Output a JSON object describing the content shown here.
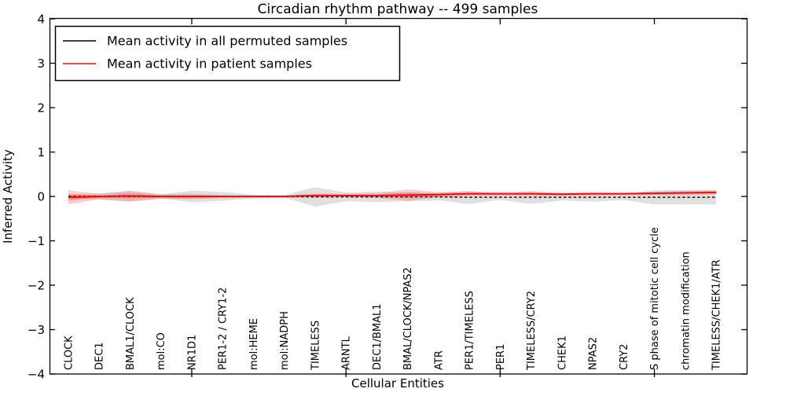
{
  "chart_data": {
    "type": "line",
    "title": "Circadian rhythm pathway -- 499 samples",
    "xlabel": "Cellular Entities",
    "ylabel": "Inferred Activity",
    "ylim": [
      -4,
      4
    ],
    "ytick_values": [
      4,
      3,
      2,
      1,
      0,
      -1,
      -2,
      -3,
      -4
    ],
    "ytick_labels": [
      "4",
      "3",
      "2",
      "1",
      "0",
      "−1",
      "−2",
      "−3",
      "−4"
    ],
    "xtick_values": [
      5,
      10,
      15,
      20
    ],
    "grid": false,
    "legend_position": "upper left",
    "categories": [
      "CLOCK",
      "DEC1",
      "BMAL1/CLOCK",
      "mol:CO",
      "NR1D1",
      "PER1-2 / CRY1-2",
      "mol:HEME",
      "mol:NADPH",
      "TIMELESS",
      "ARNTL",
      "DEC1/BMAL1",
      "BMAL/CLOCK/NPAS2",
      "ATR",
      "PER1/TIMELESS",
      "PER1",
      "TIMELESS/CRY2",
      "CHEK1",
      "NPAS2",
      "CRY2",
      "S phase of mitotic cell cycle",
      "chromatin modification",
      "TIMELESS/CHEK1/ATR"
    ],
    "series": [
      {
        "name": "Mean activity in all permuted samples",
        "color": "#000000",
        "line_style": "dashed",
        "band_color": "#999999",
        "values": [
          0,
          0,
          0,
          0,
          0,
          0,
          0,
          0,
          -0.01,
          -0.01,
          -0.01,
          -0.01,
          -0.01,
          -0.02,
          -0.02,
          -0.02,
          -0.02,
          -0.02,
          -0.02,
          -0.02,
          -0.02,
          -0.02
        ],
        "band": [
          0.05,
          0.07,
          0.12,
          0.05,
          0.13,
          0.1,
          0.04,
          0.03,
          0.22,
          0.1,
          0.12,
          0.1,
          0.08,
          0.15,
          0.06,
          0.15,
          0.07,
          0.1,
          0.06,
          0.16,
          0.16,
          0.16
        ]
      },
      {
        "name": "Mean activity in patient samples",
        "color": "#ff0000",
        "line_style": "solid",
        "band_color": "#ff4040",
        "values": [
          -0.02,
          0.0,
          0.01,
          0.0,
          0.0,
          0.0,
          0.0,
          0.0,
          0.02,
          0.02,
          0.02,
          0.03,
          0.04,
          0.06,
          0.06,
          0.06,
          0.05,
          0.06,
          0.06,
          0.07,
          0.08,
          0.09
        ],
        "band": [
          0.16,
          0.06,
          0.12,
          0.05,
          0.06,
          0.03,
          0.02,
          0.02,
          0.05,
          0.04,
          0.05,
          0.13,
          0.06,
          0.05,
          0.04,
          0.04,
          0.04,
          0.04,
          0.03,
          0.04,
          0.05,
          0.05
        ]
      }
    ]
  }
}
